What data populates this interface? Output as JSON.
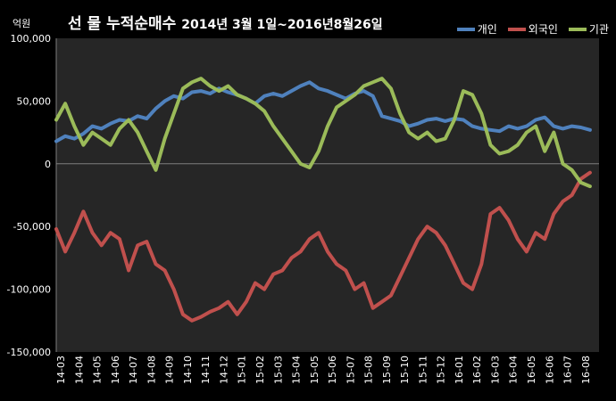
{
  "header": {
    "unit_label": "억원",
    "title_main": "선 물 누적순매수",
    "title_period": "2014년 3월 1일~2016년8월26일"
  },
  "legend": [
    {
      "name": "개인",
      "color": "#4F81BD"
    },
    {
      "name": "외국인",
      "color": "#C0504D"
    },
    {
      "name": "기관",
      "color": "#9BBB59"
    }
  ],
  "chart_data": {
    "type": "line",
    "title": "선 물 누적순매수 2014년 3월 1일~2016년8월26일",
    "ylabel": "억원",
    "ylim": [
      -150000,
      100000
    ],
    "yticks": [
      100000,
      50000,
      0,
      -50000,
      -100000,
      -150000
    ],
    "ytick_labels": [
      "100,000",
      "50,000",
      "0",
      "-50,000",
      "-100,000",
      "-150,000"
    ],
    "x_tick_labels": [
      "14-03",
      "14-04",
      "14-05",
      "14-06",
      "14-07",
      "14-08",
      "14-09",
      "14-10",
      "14-11",
      "14-12",
      "15-01",
      "15-02",
      "15-03",
      "15-04",
      "15-05",
      "15-06",
      "15-07",
      "15-08",
      "15-09",
      "15-10",
      "15-11",
      "15-12",
      "16-01",
      "16-02",
      "16-03",
      "16-04",
      "16-05",
      "16-06",
      "16-07",
      "16-08"
    ],
    "x_range": [
      0,
      30
    ],
    "legend_position": "top-right",
    "grid": false,
    "background": "#262626",
    "series": [
      {
        "name": "개인",
        "color": "#4F81BD",
        "points": [
          [
            0,
            18000
          ],
          [
            0.5,
            22000
          ],
          [
            1,
            20000
          ],
          [
            1.5,
            24000
          ],
          [
            2,
            30000
          ],
          [
            2.5,
            28000
          ],
          [
            3,
            32000
          ],
          [
            3.5,
            35000
          ],
          [
            4,
            34000
          ],
          [
            4.5,
            38000
          ],
          [
            5,
            36000
          ],
          [
            5.5,
            44000
          ],
          [
            6,
            50000
          ],
          [
            6.5,
            54000
          ],
          [
            7,
            52000
          ],
          [
            7.5,
            57000
          ],
          [
            8,
            58000
          ],
          [
            8.5,
            56000
          ],
          [
            9,
            60000
          ],
          [
            9.5,
            57000
          ],
          [
            10,
            55000
          ],
          [
            10.5,
            52000
          ],
          [
            11,
            48000
          ],
          [
            11.5,
            54000
          ],
          [
            12,
            56000
          ],
          [
            12.5,
            54000
          ],
          [
            13,
            58000
          ],
          [
            13.5,
            62000
          ],
          [
            14,
            65000
          ],
          [
            14.5,
            60000
          ],
          [
            15,
            58000
          ],
          [
            15.5,
            55000
          ],
          [
            16,
            52000
          ],
          [
            16.5,
            56000
          ],
          [
            17,
            58000
          ],
          [
            17.5,
            54000
          ],
          [
            18,
            38000
          ],
          [
            18.5,
            36000
          ],
          [
            19,
            34000
          ],
          [
            19.5,
            30000
          ],
          [
            20,
            32000
          ],
          [
            20.5,
            35000
          ],
          [
            21,
            36000
          ],
          [
            21.5,
            34000
          ],
          [
            22,
            36000
          ],
          [
            22.5,
            35000
          ],
          [
            23,
            30000
          ],
          [
            23.5,
            28000
          ],
          [
            24,
            27000
          ],
          [
            24.5,
            26000
          ],
          [
            25,
            30000
          ],
          [
            25.5,
            28000
          ],
          [
            26,
            30000
          ],
          [
            26.5,
            35000
          ],
          [
            27,
            37000
          ],
          [
            27.5,
            30000
          ],
          [
            28,
            28000
          ],
          [
            28.5,
            30000
          ],
          [
            29,
            29000
          ],
          [
            29.5,
            27000
          ]
        ]
      },
      {
        "name": "외국인",
        "color": "#C0504D",
        "points": [
          [
            0,
            -52000
          ],
          [
            0.5,
            -70000
          ],
          [
            1,
            -55000
          ],
          [
            1.5,
            -38000
          ],
          [
            2,
            -55000
          ],
          [
            2.5,
            -65000
          ],
          [
            3,
            -55000
          ],
          [
            3.5,
            -60000
          ],
          [
            4,
            -85000
          ],
          [
            4.5,
            -65000
          ],
          [
            5,
            -62000
          ],
          [
            5.5,
            -80000
          ],
          [
            6,
            -85000
          ],
          [
            6.5,
            -100000
          ],
          [
            7,
            -120000
          ],
          [
            7.5,
            -125000
          ],
          [
            8,
            -122000
          ],
          [
            8.5,
            -118000
          ],
          [
            9,
            -115000
          ],
          [
            9.5,
            -110000
          ],
          [
            10,
            -120000
          ],
          [
            10.5,
            -110000
          ],
          [
            11,
            -95000
          ],
          [
            11.5,
            -100000
          ],
          [
            12,
            -88000
          ],
          [
            12.5,
            -85000
          ],
          [
            13,
            -75000
          ],
          [
            13.5,
            -70000
          ],
          [
            14,
            -60000
          ],
          [
            14.5,
            -55000
          ],
          [
            15,
            -70000
          ],
          [
            15.5,
            -80000
          ],
          [
            16,
            -85000
          ],
          [
            16.5,
            -100000
          ],
          [
            17,
            -95000
          ],
          [
            17.5,
            -115000
          ],
          [
            18,
            -110000
          ],
          [
            18.5,
            -105000
          ],
          [
            19,
            -90000
          ],
          [
            19.5,
            -75000
          ],
          [
            20,
            -60000
          ],
          [
            20.5,
            -50000
          ],
          [
            21,
            -55000
          ],
          [
            21.5,
            -65000
          ],
          [
            22,
            -80000
          ],
          [
            22.5,
            -95000
          ],
          [
            23,
            -100000
          ],
          [
            23.5,
            -80000
          ],
          [
            24,
            -40000
          ],
          [
            24.5,
            -35000
          ],
          [
            25,
            -45000
          ],
          [
            25.5,
            -60000
          ],
          [
            26,
            -70000
          ],
          [
            26.5,
            -55000
          ],
          [
            27,
            -60000
          ],
          [
            27.5,
            -40000
          ],
          [
            28,
            -30000
          ],
          [
            28.5,
            -25000
          ],
          [
            29,
            -12000
          ],
          [
            29.5,
            -7000
          ]
        ]
      },
      {
        "name": "기관",
        "color": "#9BBB59",
        "points": [
          [
            0,
            35000
          ],
          [
            0.5,
            48000
          ],
          [
            1,
            30000
          ],
          [
            1.5,
            15000
          ],
          [
            2,
            25000
          ],
          [
            2.5,
            20000
          ],
          [
            3,
            15000
          ],
          [
            3.5,
            28000
          ],
          [
            4,
            35000
          ],
          [
            4.5,
            25000
          ],
          [
            5,
            10000
          ],
          [
            5.5,
            -5000
          ],
          [
            6,
            20000
          ],
          [
            6.5,
            40000
          ],
          [
            7,
            60000
          ],
          [
            7.5,
            65000
          ],
          [
            8,
            68000
          ],
          [
            8.5,
            62000
          ],
          [
            9,
            58000
          ],
          [
            9.5,
            62000
          ],
          [
            10,
            55000
          ],
          [
            10.5,
            52000
          ],
          [
            11,
            48000
          ],
          [
            11.5,
            42000
          ],
          [
            12,
            30000
          ],
          [
            12.5,
            20000
          ],
          [
            13,
            10000
          ],
          [
            13.5,
            0
          ],
          [
            14,
            -3000
          ],
          [
            14.5,
            10000
          ],
          [
            15,
            30000
          ],
          [
            15.5,
            45000
          ],
          [
            16,
            50000
          ],
          [
            16.5,
            55000
          ],
          [
            17,
            62000
          ],
          [
            17.5,
            65000
          ],
          [
            18,
            68000
          ],
          [
            18.5,
            60000
          ],
          [
            19,
            40000
          ],
          [
            19.5,
            25000
          ],
          [
            20,
            20000
          ],
          [
            20.5,
            25000
          ],
          [
            21,
            18000
          ],
          [
            21.5,
            20000
          ],
          [
            22,
            35000
          ],
          [
            22.5,
            58000
          ],
          [
            23,
            55000
          ],
          [
            23.5,
            40000
          ],
          [
            24,
            15000
          ],
          [
            24.5,
            8000
          ],
          [
            25,
            10000
          ],
          [
            25.5,
            15000
          ],
          [
            26,
            25000
          ],
          [
            26.5,
            30000
          ],
          [
            27,
            10000
          ],
          [
            27.5,
            25000
          ],
          [
            28,
            0
          ],
          [
            28.5,
            -5000
          ],
          [
            29,
            -15000
          ],
          [
            29.5,
            -18000
          ]
        ]
      }
    ]
  }
}
